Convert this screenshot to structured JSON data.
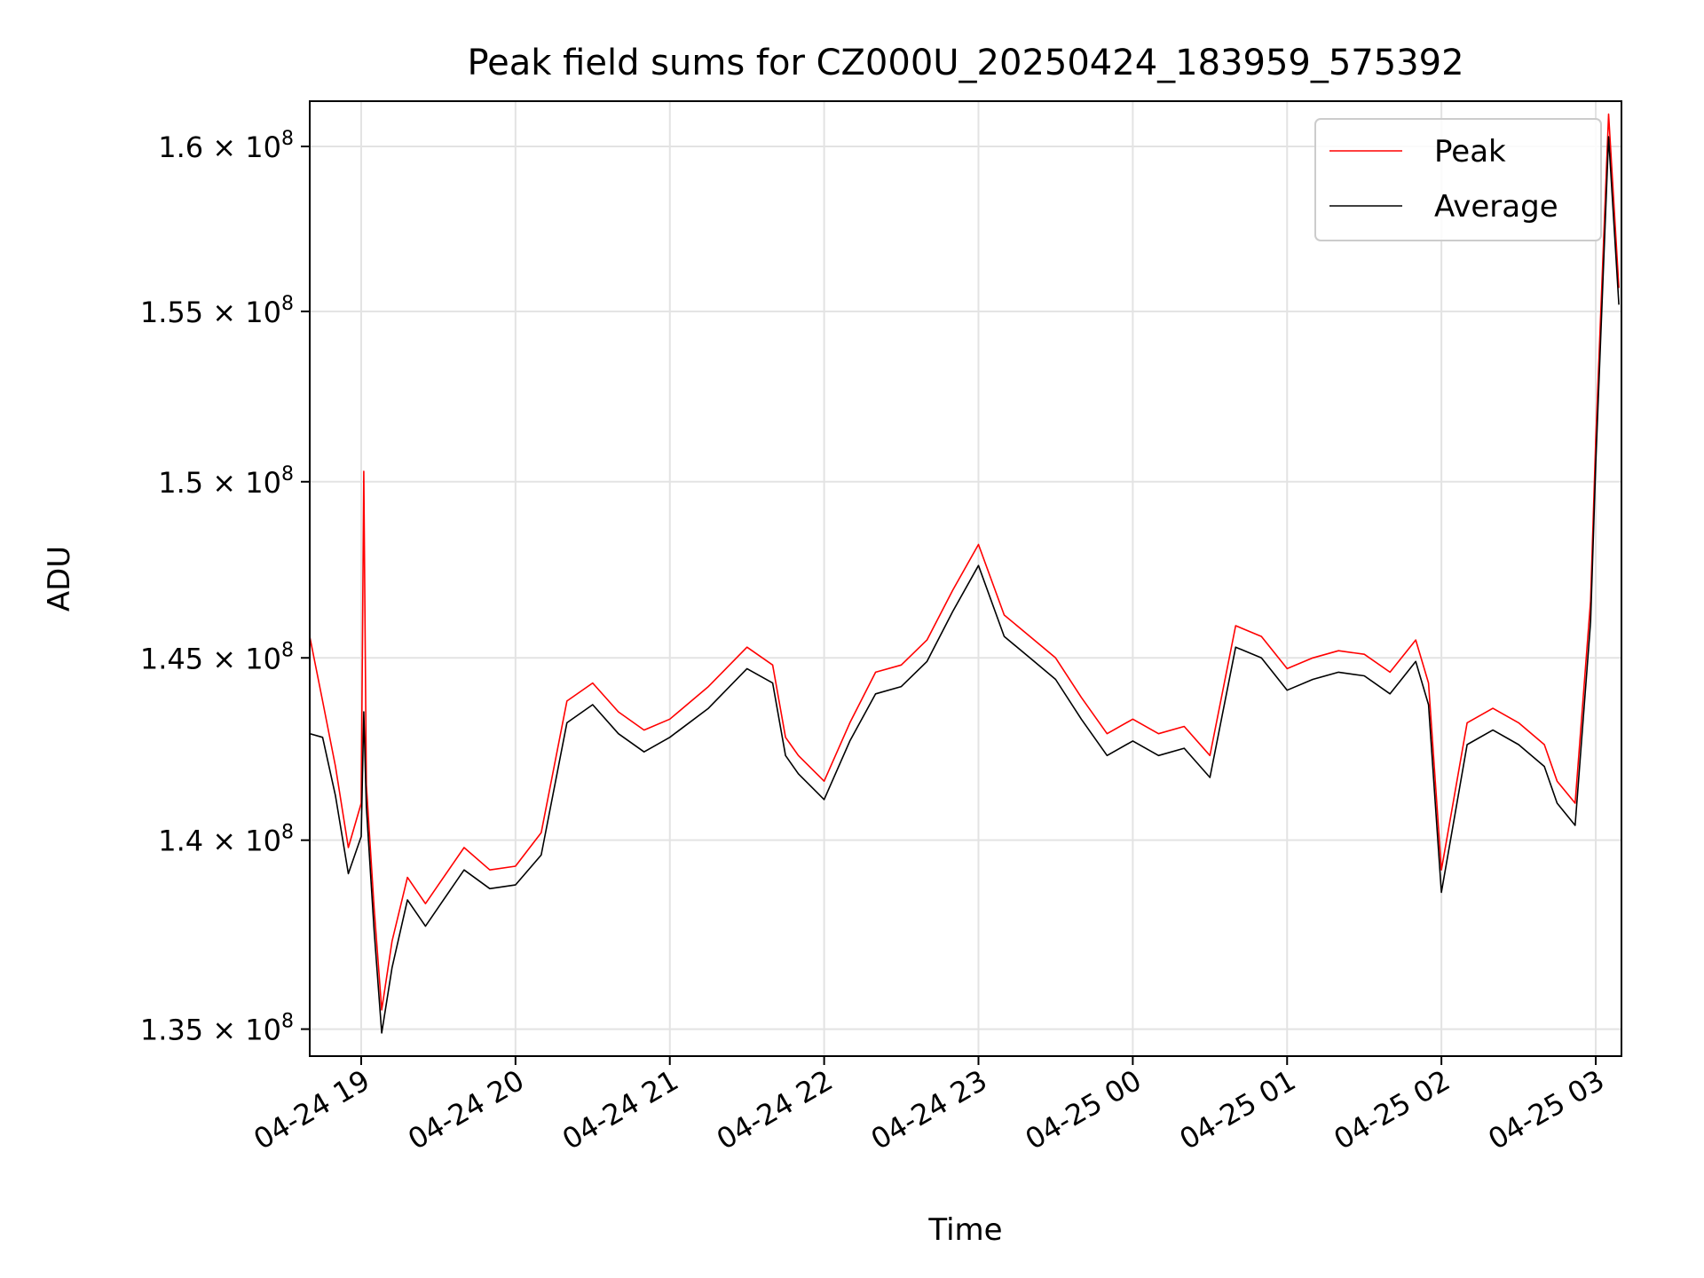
{
  "chart_data": {
    "type": "line",
    "title": "Peak field sums for CZ000U_20250424_183959_575392",
    "xlabel": "Time",
    "ylabel": "ADU",
    "y_scale": "log",
    "xlim": [
      "2025-04-24 18:40",
      "2025-04-25 03:10"
    ],
    "ylim": [
      134300000.0,
      161400000.0
    ],
    "grid": true,
    "legend_position": "top-right",
    "x_ticks": [
      {
        "t": "2025-04-24 19:00",
        "label": "04-24 19"
      },
      {
        "t": "2025-04-24 20:00",
        "label": "04-24 20"
      },
      {
        "t": "2025-04-24 21:00",
        "label": "04-24 21"
      },
      {
        "t": "2025-04-24 22:00",
        "label": "04-24 22"
      },
      {
        "t": "2025-04-24 23:00",
        "label": "04-24 23"
      },
      {
        "t": "2025-04-25 00:00",
        "label": "04-25 00"
      },
      {
        "t": "2025-04-25 01:00",
        "label": "04-25 01"
      },
      {
        "t": "2025-04-25 02:00",
        "label": "04-25 02"
      },
      {
        "t": "2025-04-25 03:00",
        "label": "04-25 03"
      }
    ],
    "y_ticks": [
      {
        "v": 135000000,
        "mant": "1.35",
        "exp": "8"
      },
      {
        "v": 140000000,
        "mant": "1.4",
        "exp": "8"
      },
      {
        "v": 145000000,
        "mant": "1.45",
        "exp": "8"
      },
      {
        "v": 150000000,
        "mant": "1.5",
        "exp": "8"
      },
      {
        "v": 155000000,
        "mant": "1.55",
        "exp": "8"
      },
      {
        "v": 160000000,
        "mant": "1.6",
        "exp": "8"
      }
    ],
    "series": [
      {
        "name": "Peak",
        "color": "#ff0000",
        "points": [
          [
            "2025-04-24 18:40",
            145600000.0
          ],
          [
            "2025-04-24 18:45",
            143800000.0
          ],
          [
            "2025-04-24 18:50",
            142000000.0
          ],
          [
            "2025-04-24 18:55",
            139800000.0
          ],
          [
            "2025-04-24 19:00",
            141000000.0
          ],
          [
            "2025-04-24 19:01",
            150300000.0
          ],
          [
            "2025-04-24 19:02",
            141500000.0
          ],
          [
            "2025-04-24 19:05",
            138200000.0
          ],
          [
            "2025-04-24 19:08",
            135500000.0
          ],
          [
            "2025-04-24 19:12",
            137300000.0
          ],
          [
            "2025-04-24 19:18",
            139000000.0
          ],
          [
            "2025-04-24 19:25",
            138300000.0
          ],
          [
            "2025-04-24 19:30",
            138800000.0
          ],
          [
            "2025-04-24 19:40",
            139800000.0
          ],
          [
            "2025-04-24 19:50",
            139200000.0
          ],
          [
            "2025-04-24 20:00",
            139300000.0
          ],
          [
            "2025-04-24 20:10",
            140200000.0
          ],
          [
            "2025-04-24 20:20",
            143800000.0
          ],
          [
            "2025-04-24 20:30",
            144300000.0
          ],
          [
            "2025-04-24 20:40",
            143500000.0
          ],
          [
            "2025-04-24 20:50",
            143000000.0
          ],
          [
            "2025-04-24 21:00",
            143300000.0
          ],
          [
            "2025-04-24 21:15",
            144200000.0
          ],
          [
            "2025-04-24 21:30",
            145300000.0
          ],
          [
            "2025-04-24 21:40",
            144800000.0
          ],
          [
            "2025-04-24 21:45",
            142800000.0
          ],
          [
            "2025-04-24 21:50",
            142300000.0
          ],
          [
            "2025-04-24 22:00",
            141600000.0
          ],
          [
            "2025-04-24 22:10",
            143200000.0
          ],
          [
            "2025-04-24 22:20",
            144600000.0
          ],
          [
            "2025-04-24 22:30",
            144800000.0
          ],
          [
            "2025-04-24 22:40",
            145500000.0
          ],
          [
            "2025-04-24 22:50",
            146900000.0
          ],
          [
            "2025-04-24 23:00",
            148200000.0
          ],
          [
            "2025-04-24 23:10",
            146200000.0
          ],
          [
            "2025-04-24 23:20",
            145600000.0
          ],
          [
            "2025-04-24 23:30",
            145000000.0
          ],
          [
            "2025-04-24 23:40",
            143900000.0
          ],
          [
            "2025-04-24 23:50",
            142900000.0
          ],
          [
            "2025-04-25 00:00",
            143300000.0
          ],
          [
            "2025-04-25 00:10",
            142900000.0
          ],
          [
            "2025-04-25 00:20",
            143100000.0
          ],
          [
            "2025-04-25 00:30",
            142300000.0
          ],
          [
            "2025-04-25 00:40",
            145900000.0
          ],
          [
            "2025-04-25 00:50",
            145600000.0
          ],
          [
            "2025-04-25 01:00",
            144700000.0
          ],
          [
            "2025-04-25 01:10",
            145000000.0
          ],
          [
            "2025-04-25 01:20",
            145200000.0
          ],
          [
            "2025-04-25 01:30",
            145100000.0
          ],
          [
            "2025-04-25 01:40",
            144600000.0
          ],
          [
            "2025-04-25 01:50",
            145500000.0
          ],
          [
            "2025-04-25 01:55",
            144300000.0
          ],
          [
            "2025-04-25 02:00",
            139200000.0
          ],
          [
            "2025-04-25 02:10",
            143200000.0
          ],
          [
            "2025-04-25 02:20",
            143600000.0
          ],
          [
            "2025-04-25 02:30",
            143200000.0
          ],
          [
            "2025-04-25 02:40",
            142600000.0
          ],
          [
            "2025-04-25 02:45",
            141600000.0
          ],
          [
            "2025-04-25 02:52",
            141000000.0
          ],
          [
            "2025-04-25 02:58",
            146600000.0
          ],
          [
            "2025-04-25 03:00",
            151200000.0
          ],
          [
            "2025-04-25 03:05",
            161000000.0
          ],
          [
            "2025-04-25 03:09",
            155700000.0
          ]
        ]
      },
      {
        "name": "Average",
        "color": "#000000",
        "points": [
          [
            "2025-04-24 18:40",
            142900000.0
          ],
          [
            "2025-04-24 18:45",
            142800000.0
          ],
          [
            "2025-04-24 18:50",
            141200000.0
          ],
          [
            "2025-04-24 18:55",
            139100000.0
          ],
          [
            "2025-04-24 19:00",
            140100000.0
          ],
          [
            "2025-04-24 19:01",
            143500000.0
          ],
          [
            "2025-04-24 19:02",
            140900000.0
          ],
          [
            "2025-04-24 19:05",
            137600000.0
          ],
          [
            "2025-04-24 19:08",
            134900000.0
          ],
          [
            "2025-04-24 19:12",
            136600000.0
          ],
          [
            "2025-04-24 19:18",
            138400000.0
          ],
          [
            "2025-04-24 19:25",
            137700000.0
          ],
          [
            "2025-04-24 19:30",
            138200000.0
          ],
          [
            "2025-04-24 19:40",
            139200000.0
          ],
          [
            "2025-04-24 19:50",
            138700000.0
          ],
          [
            "2025-04-24 20:00",
            138800000.0
          ],
          [
            "2025-04-24 20:10",
            139600000.0
          ],
          [
            "2025-04-24 20:20",
            143200000.0
          ],
          [
            "2025-04-24 20:30",
            143700000.0
          ],
          [
            "2025-04-24 20:40",
            142900000.0
          ],
          [
            "2025-04-24 20:50",
            142400000.0
          ],
          [
            "2025-04-24 21:00",
            142800000.0
          ],
          [
            "2025-04-24 21:15",
            143600000.0
          ],
          [
            "2025-04-24 21:30",
            144700000.0
          ],
          [
            "2025-04-24 21:40",
            144300000.0
          ],
          [
            "2025-04-24 21:45",
            142300000.0
          ],
          [
            "2025-04-24 21:50",
            141800000.0
          ],
          [
            "2025-04-24 22:00",
            141100000.0
          ],
          [
            "2025-04-24 22:10",
            142700000.0
          ],
          [
            "2025-04-24 22:20",
            144000000.0
          ],
          [
            "2025-04-24 22:30",
            144200000.0
          ],
          [
            "2025-04-24 22:40",
            144900000.0
          ],
          [
            "2025-04-24 22:50",
            146300000.0
          ],
          [
            "2025-04-24 23:00",
            147600000.0
          ],
          [
            "2025-04-24 23:10",
            145600000.0
          ],
          [
            "2025-04-24 23:20",
            145000000.0
          ],
          [
            "2025-04-24 23:30",
            144400000.0
          ],
          [
            "2025-04-24 23:40",
            143300000.0
          ],
          [
            "2025-04-24 23:50",
            142300000.0
          ],
          [
            "2025-04-25 00:00",
            142700000.0
          ],
          [
            "2025-04-25 00:10",
            142300000.0
          ],
          [
            "2025-04-25 00:20",
            142500000.0
          ],
          [
            "2025-04-25 00:30",
            141700000.0
          ],
          [
            "2025-04-25 00:40",
            145300000.0
          ],
          [
            "2025-04-25 00:50",
            145000000.0
          ],
          [
            "2025-04-25 01:00",
            144100000.0
          ],
          [
            "2025-04-25 01:10",
            144400000.0
          ],
          [
            "2025-04-25 01:20",
            144600000.0
          ],
          [
            "2025-04-25 01:30",
            144500000.0
          ],
          [
            "2025-04-25 01:40",
            144000000.0
          ],
          [
            "2025-04-25 01:50",
            144900000.0
          ],
          [
            "2025-04-25 01:55",
            143700000.0
          ],
          [
            "2025-04-25 02:00",
            138600000.0
          ],
          [
            "2025-04-25 02:10",
            142600000.0
          ],
          [
            "2025-04-25 02:20",
            143000000.0
          ],
          [
            "2025-04-25 02:30",
            142600000.0
          ],
          [
            "2025-04-25 02:40",
            142000000.0
          ],
          [
            "2025-04-25 02:45",
            141000000.0
          ],
          [
            "2025-04-25 02:52",
            140400000.0
          ],
          [
            "2025-04-25 02:58",
            146000000.0
          ],
          [
            "2025-04-25 03:00",
            150500000.0
          ],
          [
            "2025-04-25 03:05",
            160300000.0
          ],
          [
            "2025-04-25 03:09",
            155200000.0
          ]
        ]
      }
    ]
  }
}
